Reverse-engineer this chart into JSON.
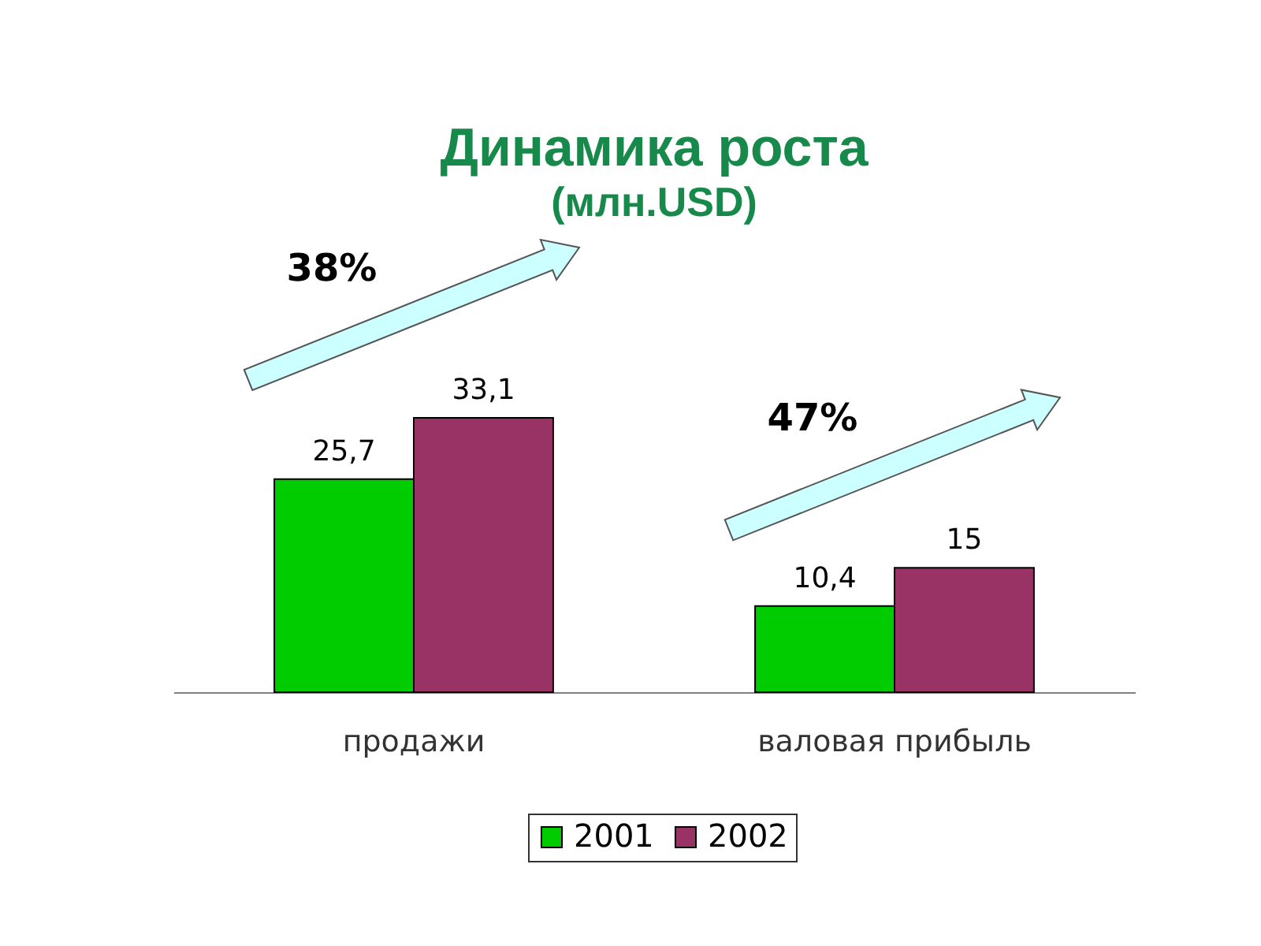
{
  "chart_data": {
    "type": "bar",
    "title": "Динамика роста",
    "subtitle": "(млн.USD)",
    "categories": [
      "продажи",
      "валовая прибыль"
    ],
    "series": [
      {
        "name": "2001",
        "color": "#00cc00",
        "values": [
          25.7,
          10.4
        ],
        "value_labels": [
          "25,7",
          "10,4"
        ]
      },
      {
        "name": "2002",
        "color": "#993366",
        "values": [
          33.1,
          15
        ],
        "value_labels": [
          "33,1",
          "15"
        ]
      }
    ],
    "annotations": [
      "38%",
      "47%"
    ],
    "legend": "bottom",
    "tick_labels": "x"
  }
}
